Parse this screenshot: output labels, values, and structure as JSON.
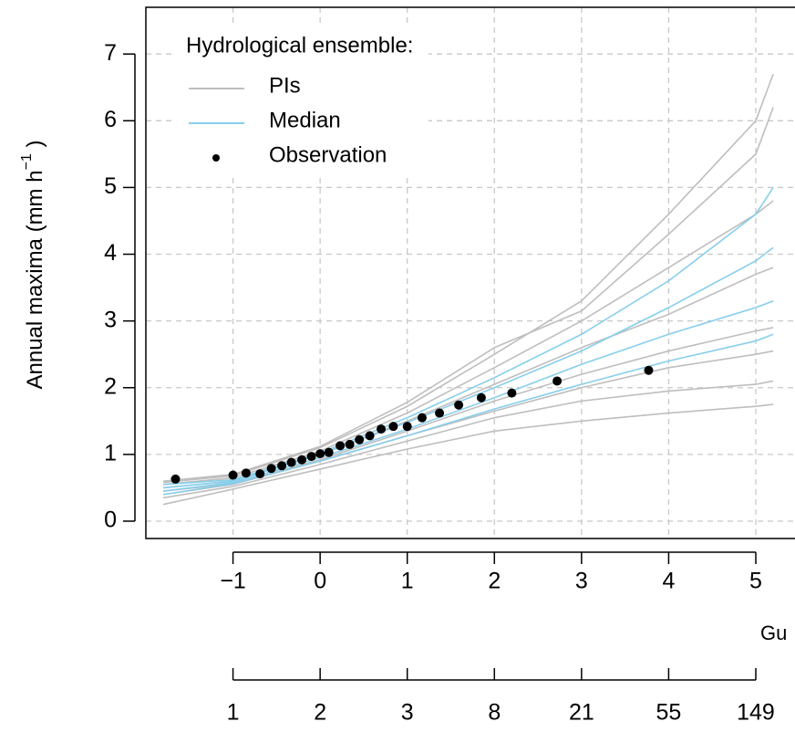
{
  "chart_data": {
    "type": "ensemble",
    "xlabel": "Gu",
    "ylabel": {
      "text": "Annual maxima (mm h",
      "sup": "−1",
      "end": " )"
    },
    "xlim": [
      -2.0,
      5.45
    ],
    "ylim": [
      -0.26,
      7.7
    ],
    "xticks": [
      -1,
      0,
      1,
      2,
      3,
      4,
      5
    ],
    "xticks_labels": [
      {
        "value": -1,
        "label": "−1"
      },
      {
        "value": 0,
        "label": "0"
      },
      {
        "value": 1,
        "label": "1"
      },
      {
        "value": 2,
        "label": "2"
      },
      {
        "value": 3,
        "label": "3"
      },
      {
        "value": 4,
        "label": "4"
      },
      {
        "value": 5,
        "label": "5"
      }
    ],
    "yticks": [
      0,
      1,
      2,
      3,
      4,
      5,
      6,
      7
    ],
    "x2ticks": [
      {
        "value": -1,
        "label": "1"
      },
      {
        "value": 0,
        "label": "2"
      },
      {
        "value": 1,
        "label": "3"
      },
      {
        "value": 2,
        "label": "8"
      },
      {
        "value": 3,
        "label": "21"
      },
      {
        "value": 4,
        "label": "55"
      },
      {
        "value": 5,
        "label": "149"
      }
    ],
    "grid": true,
    "legend_title": "Hydrological ensemble:",
    "line_x": [
      -1.8,
      -1,
      0,
      1,
      2,
      3,
      4,
      5,
      5.2
    ],
    "series": [
      {
        "name": "PIs",
        "color": "#bebebe",
        "lines": [
          [
            0.25,
            0.48,
            0.78,
            1.08,
            1.35,
            1.5,
            1.62,
            1.72,
            1.75
          ],
          [
            0.35,
            0.52,
            0.85,
            1.2,
            1.55,
            1.8,
            1.95,
            2.05,
            2.1
          ],
          [
            0.45,
            0.56,
            0.92,
            1.35,
            1.8,
            2.2,
            2.55,
            2.85,
            2.9
          ],
          [
            0.5,
            0.6,
            1.0,
            1.5,
            2.05,
            2.6,
            3.1,
            3.7,
            3.8
          ],
          [
            0.55,
            0.65,
            1.05,
            1.62,
            2.3,
            3.0,
            3.8,
            4.6,
            4.8
          ],
          [
            0.58,
            0.68,
            1.1,
            1.72,
            2.5,
            3.3,
            4.6,
            6.0,
            6.7
          ],
          [
            0.6,
            0.7,
            1.12,
            1.78,
            2.6,
            3.15,
            4.3,
            5.5,
            6.2
          ],
          [
            0.4,
            0.55,
            0.9,
            1.28,
            1.65,
            2.0,
            2.3,
            2.5,
            2.55
          ]
        ]
      },
      {
        "name": "Median",
        "color": "#87ceeb",
        "lines": [
          [
            0.4,
            0.56,
            0.9,
            1.28,
            1.68,
            2.05,
            2.4,
            2.7,
            2.8
          ],
          [
            0.45,
            0.58,
            0.95,
            1.38,
            1.85,
            2.35,
            2.8,
            3.2,
            3.3
          ],
          [
            0.5,
            0.6,
            1.0,
            1.48,
            2.0,
            2.55,
            3.2,
            3.9,
            4.1
          ],
          [
            0.55,
            0.62,
            1.02,
            1.55,
            2.15,
            2.8,
            3.6,
            4.6,
            5.0
          ]
        ]
      },
      {
        "name": "Observation",
        "color": "#000000",
        "x": [
          -1.66,
          -1.0,
          -0.85,
          -0.69,
          -0.56,
          -0.44,
          -0.33,
          -0.21,
          -0.1,
          0.0,
          0.1,
          0.23,
          0.34,
          0.45,
          0.57,
          0.7,
          0.84,
          1.0,
          1.17,
          1.37,
          1.59,
          1.85,
          2.2,
          2.72,
          3.77
        ],
        "values": [
          0.63,
          0.69,
          0.72,
          0.71,
          0.79,
          0.83,
          0.88,
          0.92,
          0.97,
          1.01,
          1.03,
          1.13,
          1.15,
          1.22,
          1.28,
          1.38,
          1.42,
          1.42,
          1.55,
          1.62,
          1.74,
          1.85,
          1.92,
          2.1,
          2.26
        ]
      }
    ]
  }
}
